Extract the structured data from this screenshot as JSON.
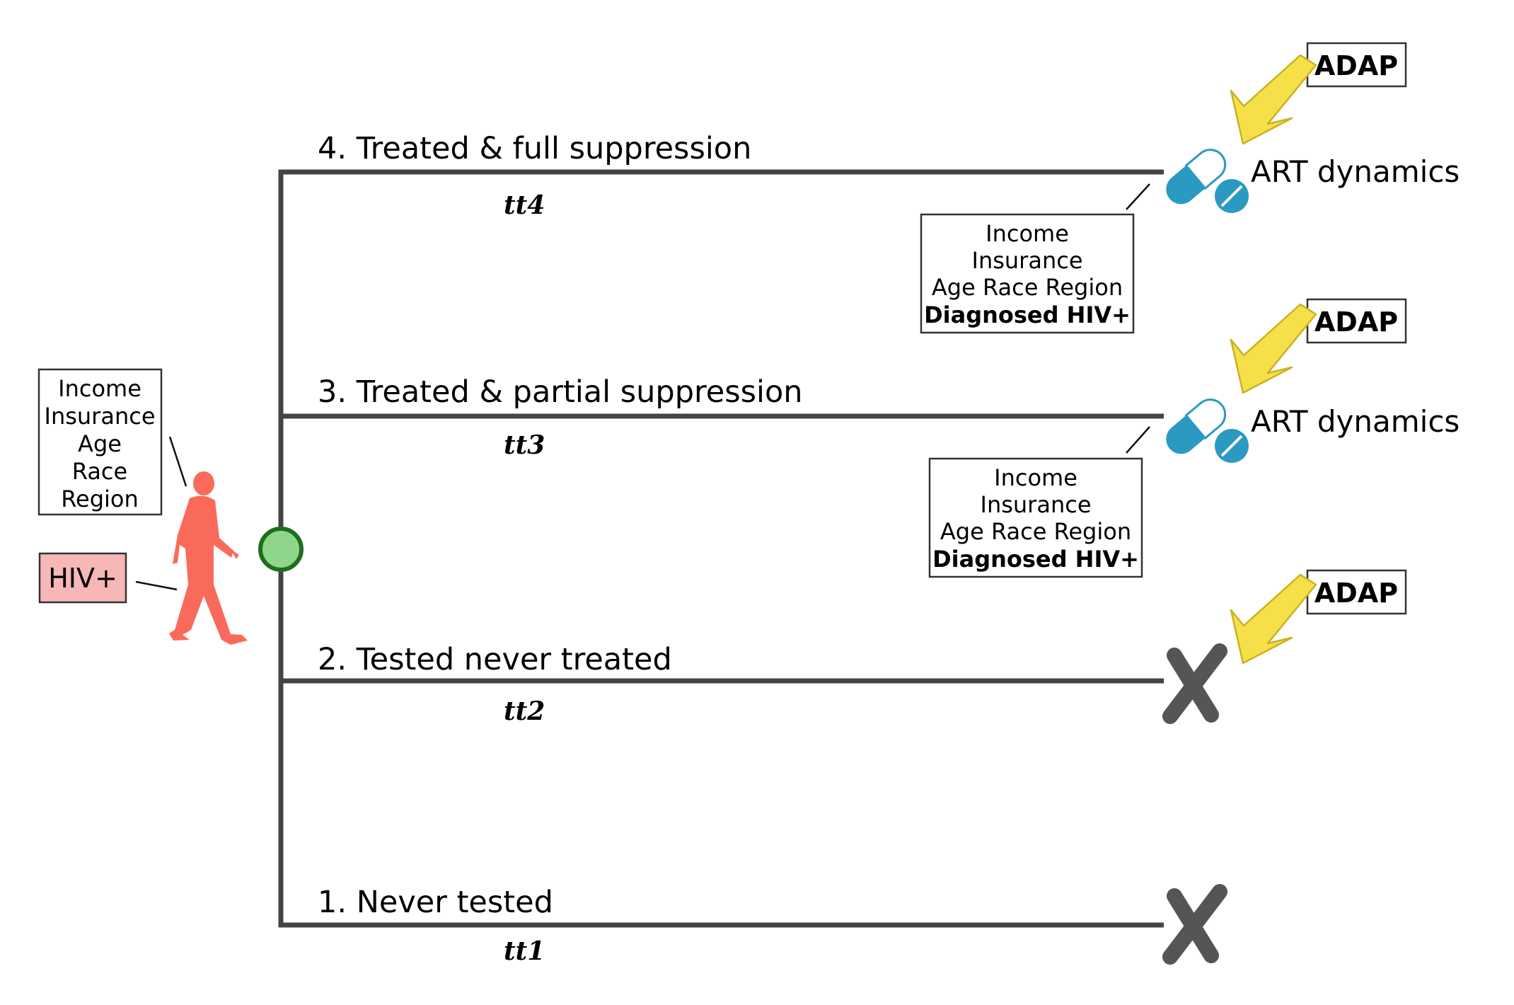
{
  "branches": [
    {
      "label": "4. Treated & full suppression",
      "time": "tt4",
      "outcome": "pill-icon"
    },
    {
      "label": "3. Treated & partial suppression",
      "time": "tt3",
      "outcome": "pill-icon"
    },
    {
      "label": "2. Tested never treated",
      "time": "tt2",
      "outcome": "cross-icon"
    },
    {
      "label": "1. Never tested",
      "time": "tt1",
      "outcome": "cross-icon"
    }
  ],
  "person": {
    "attributes": [
      "Income",
      "Insurance",
      "Age",
      "Race",
      "Region"
    ],
    "status": "HIV+"
  },
  "treated_attributes": {
    "lines": [
      "Income",
      "Insurance",
      "Age Race Region"
    ],
    "bold_line": "Diagnosed HIV+"
  },
  "adap_label": "ADAP",
  "art_label": "ART dynamics",
  "colors": {
    "line": "#444444",
    "person": "#fa6a5a",
    "hiv_box": "#f7b7b7",
    "node_fill": "#8fd68a",
    "node_stroke": "#1d6e1d",
    "pill": "#2b9ac2",
    "arrow": "#f5e04a",
    "arrow_stroke": "#c9b21f",
    "cross": "#555555"
  }
}
